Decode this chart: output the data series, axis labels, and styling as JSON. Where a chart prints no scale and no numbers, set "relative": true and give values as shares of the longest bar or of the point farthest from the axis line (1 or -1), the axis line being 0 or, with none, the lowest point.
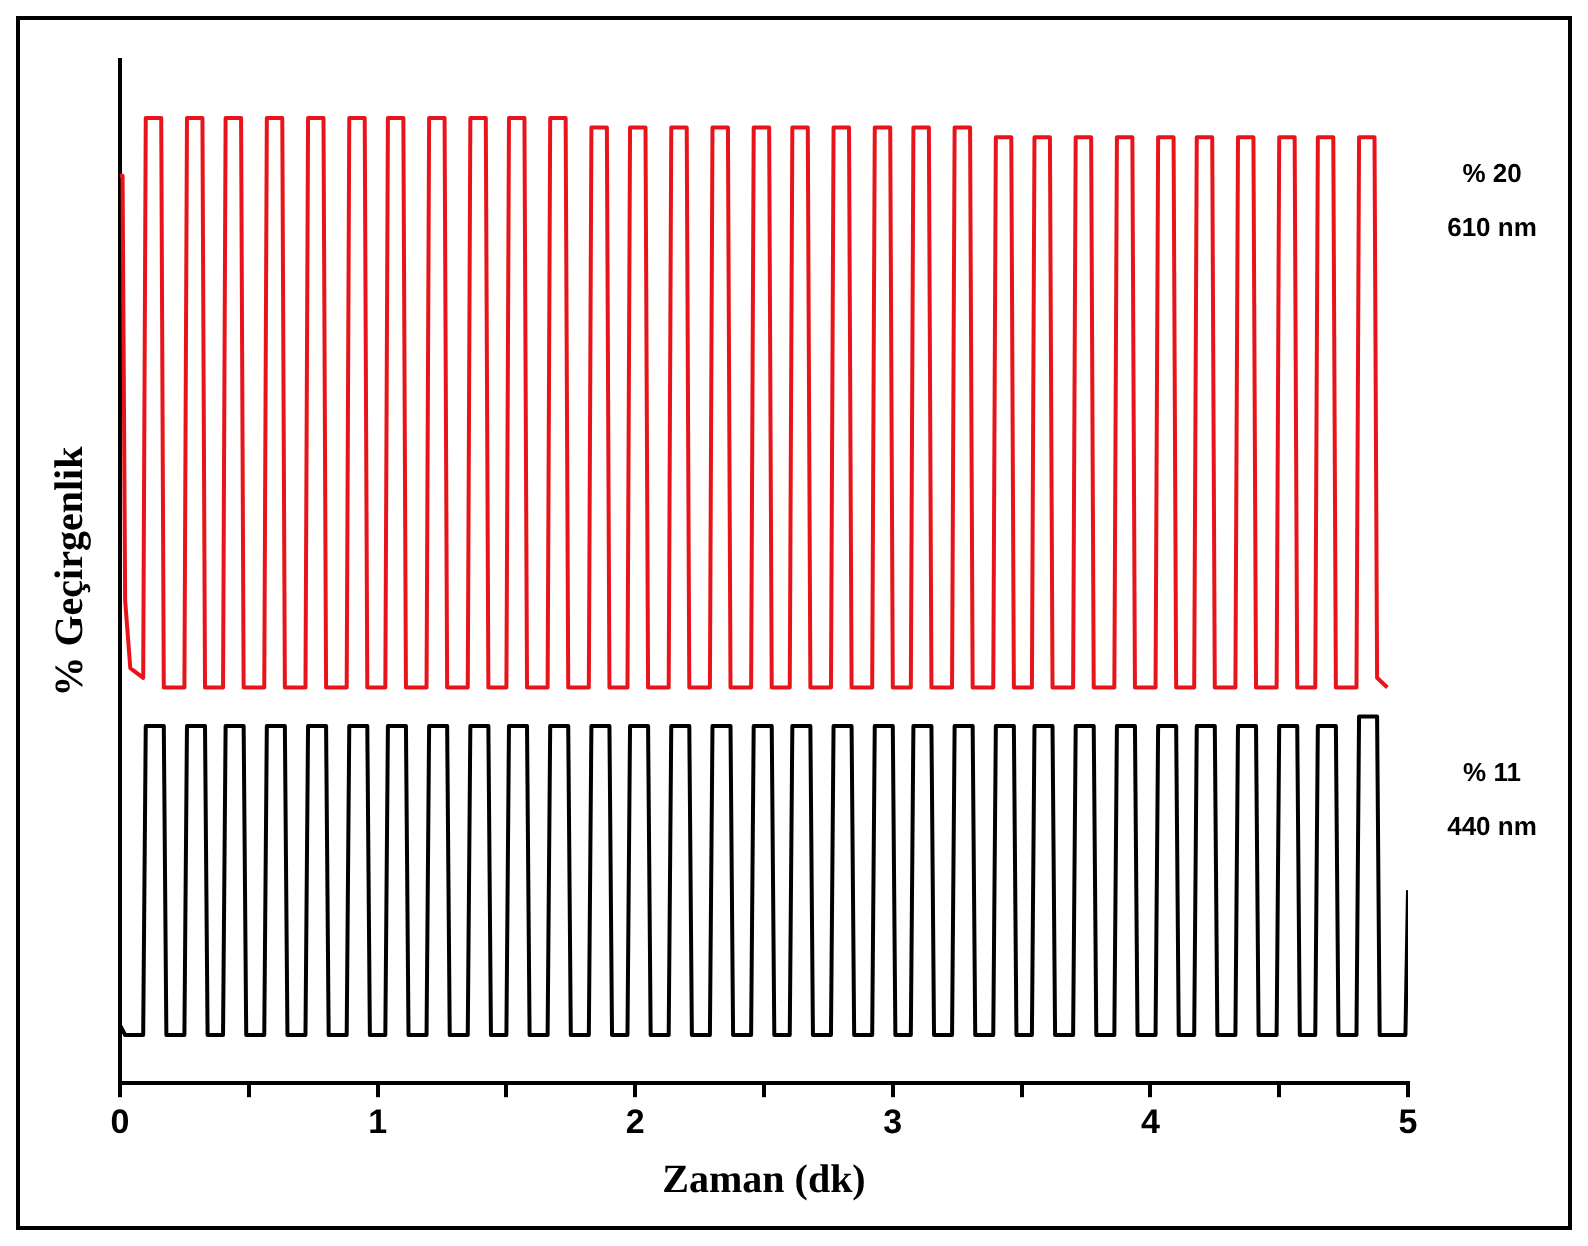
{
  "chart_data": {
    "type": "line",
    "relative": true,
    "xlabel": "Zaman (dk)",
    "ylabel": "% Geçirgenlik",
    "xlim": [
      0,
      5
    ],
    "xticks": [
      0,
      {
        "value": 0.5,
        "label": null
      },
      1,
      {
        "value": 1.5,
        "label": null
      },
      2,
      {
        "value": 2.5,
        "label": null
      },
      3,
      {
        "value": 3.5,
        "label": null
      },
      4,
      {
        "value": 4.5,
        "label": null
      },
      5
    ],
    "grid": false,
    "legend": false,
    "marker": "none",
    "line_style": "solid",
    "series": [
      {
        "name": "% 20 610 nm",
        "color": "#e8141b",
        "x": [
          0,
          0.01,
          0.02,
          0.04,
          0.09,
          0.1,
          0.16,
          0.17,
          0.25,
          0.26,
          0.32,
          0.33,
          0.4,
          0.41,
          0.47,
          0.48,
          0.56,
          0.57,
          0.63,
          0.64,
          0.72,
          0.73,
          0.79,
          0.8,
          0.88,
          0.89,
          0.95,
          0.96,
          1.03,
          1.04,
          1.1,
          1.11,
          1.19,
          1.2,
          1.26,
          1.27,
          1.35,
          1.36,
          1.42,
          1.43,
          1.5,
          1.51,
          1.57,
          1.58,
          1.66,
          1.67,
          1.73,
          1.74,
          1.82,
          1.83,
          1.89,
          1.9,
          1.97,
          1.98,
          2.04,
          2.05,
          2.13,
          2.14,
          2.2,
          2.21,
          2.29,
          2.3,
          2.36,
          2.37,
          2.45,
          2.46,
          2.52,
          2.53,
          2.6,
          2.61,
          2.67,
          2.68,
          2.76,
          2.77,
          2.83,
          2.84,
          2.92,
          2.93,
          2.99,
          3.0,
          3.07,
          3.08,
          3.14,
          3.15,
          3.23,
          3.24,
          3.3,
          3.31,
          3.39,
          3.4,
          3.46,
          3.47,
          3.54,
          3.55,
          3.61,
          3.62,
          3.7,
          3.71,
          3.77,
          3.78,
          3.86,
          3.87,
          3.93,
          3.94,
          4.02,
          4.03,
          4.09,
          4.1,
          4.17,
          4.18,
          4.24,
          4.25,
          4.33,
          4.34,
          4.4,
          4.41,
          4.49,
          4.5,
          4.56,
          4.57,
          4.64,
          4.65,
          4.71,
          4.72,
          4.8,
          4.81,
          4.87,
          4.88,
          4.92
        ],
        "values": [
          0.94,
          0.94,
          0.5,
          0.43,
          0.42,
          1.0,
          1.0,
          0.41,
          0.41,
          1.0,
          1.0,
          0.41,
          0.41,
          1.0,
          1.0,
          0.41,
          0.41,
          1.0,
          1.0,
          0.41,
          0.41,
          1.0,
          1.0,
          0.41,
          0.41,
          1.0,
          1.0,
          0.41,
          0.41,
          1.0,
          1.0,
          0.41,
          0.41,
          1.0,
          1.0,
          0.41,
          0.41,
          1.0,
          1.0,
          0.41,
          0.41,
          1.0,
          1.0,
          0.41,
          0.41,
          1.0,
          1.0,
          0.41,
          0.41,
          0.99,
          0.99,
          0.41,
          0.41,
          0.99,
          0.99,
          0.41,
          0.41,
          0.99,
          0.99,
          0.41,
          0.41,
          0.99,
          0.99,
          0.41,
          0.41,
          0.99,
          0.99,
          0.41,
          0.41,
          0.99,
          0.99,
          0.41,
          0.41,
          0.99,
          0.99,
          0.41,
          0.41,
          0.99,
          0.99,
          0.41,
          0.41,
          0.99,
          0.99,
          0.41,
          0.41,
          0.99,
          0.99,
          0.41,
          0.41,
          0.98,
          0.98,
          0.41,
          0.41,
          0.98,
          0.98,
          0.41,
          0.41,
          0.98,
          0.98,
          0.41,
          0.41,
          0.98,
          0.98,
          0.41,
          0.41,
          0.98,
          0.98,
          0.41,
          0.41,
          0.98,
          0.98,
          0.41,
          0.41,
          0.98,
          0.98,
          0.41,
          0.41,
          0.98,
          0.98,
          0.41,
          0.41,
          0.98,
          0.98,
          0.41,
          0.41,
          0.98,
          0.98,
          0.42,
          0.41
        ]
      },
      {
        "name": "% 11 440 nm",
        "color": "#000000",
        "x": [
          0,
          0.02,
          0.09,
          0.1,
          0.17,
          0.18,
          0.25,
          0.26,
          0.33,
          0.34,
          0.4,
          0.41,
          0.48,
          0.49,
          0.56,
          0.57,
          0.64,
          0.65,
          0.72,
          0.73,
          0.8,
          0.81,
          0.88,
          0.89,
          0.96,
          0.97,
          1.03,
          1.04,
          1.11,
          1.12,
          1.19,
          1.2,
          1.27,
          1.28,
          1.35,
          1.36,
          1.43,
          1.44,
          1.5,
          1.51,
          1.58,
          1.59,
          1.66,
          1.67,
          1.74,
          1.75,
          1.82,
          1.83,
          1.9,
          1.91,
          1.97,
          1.98,
          2.05,
          2.06,
          2.13,
          2.14,
          2.21,
          2.22,
          2.29,
          2.3,
          2.37,
          2.38,
          2.45,
          2.46,
          2.53,
          2.54,
          2.6,
          2.61,
          2.68,
          2.69,
          2.76,
          2.77,
          2.84,
          2.85,
          2.92,
          2.93,
          3.0,
          3.01,
          3.07,
          3.08,
          3.15,
          3.16,
          3.23,
          3.24,
          3.31,
          3.32,
          3.39,
          3.4,
          3.47,
          3.48,
          3.54,
          3.55,
          3.62,
          3.63,
          3.7,
          3.71,
          3.78,
          3.79,
          3.86,
          3.87,
          3.94,
          3.95,
          4.02,
          4.03,
          4.1,
          4.11,
          4.17,
          4.18,
          4.25,
          4.26,
          4.33,
          4.34,
          4.41,
          4.42,
          4.49,
          4.5,
          4.57,
          4.58,
          4.64,
          4.65,
          4.72,
          4.73,
          4.8,
          4.81,
          4.88,
          4.89,
          4.99,
          5.0
        ],
        "values": [
          0.06,
          0.05,
          0.05,
          0.37,
          0.37,
          0.05,
          0.05,
          0.37,
          0.37,
          0.05,
          0.05,
          0.37,
          0.37,
          0.05,
          0.05,
          0.37,
          0.37,
          0.05,
          0.05,
          0.37,
          0.37,
          0.05,
          0.05,
          0.37,
          0.37,
          0.05,
          0.05,
          0.37,
          0.37,
          0.05,
          0.05,
          0.37,
          0.37,
          0.05,
          0.05,
          0.37,
          0.37,
          0.05,
          0.05,
          0.37,
          0.37,
          0.05,
          0.05,
          0.37,
          0.37,
          0.05,
          0.05,
          0.37,
          0.37,
          0.05,
          0.05,
          0.37,
          0.37,
          0.05,
          0.05,
          0.37,
          0.37,
          0.05,
          0.05,
          0.37,
          0.37,
          0.05,
          0.05,
          0.37,
          0.37,
          0.05,
          0.05,
          0.37,
          0.37,
          0.05,
          0.05,
          0.37,
          0.37,
          0.05,
          0.05,
          0.37,
          0.37,
          0.05,
          0.05,
          0.37,
          0.37,
          0.05,
          0.05,
          0.37,
          0.37,
          0.05,
          0.05,
          0.37,
          0.37,
          0.05,
          0.05,
          0.37,
          0.37,
          0.05,
          0.05,
          0.37,
          0.37,
          0.05,
          0.05,
          0.37,
          0.37,
          0.05,
          0.05,
          0.37,
          0.37,
          0.05,
          0.05,
          0.37,
          0.37,
          0.05,
          0.05,
          0.37,
          0.37,
          0.05,
          0.05,
          0.37,
          0.37,
          0.05,
          0.05,
          0.37,
          0.37,
          0.05,
          0.05,
          0.38,
          0.38,
          0.05,
          0.05,
          0.2
        ]
      }
    ]
  }
}
